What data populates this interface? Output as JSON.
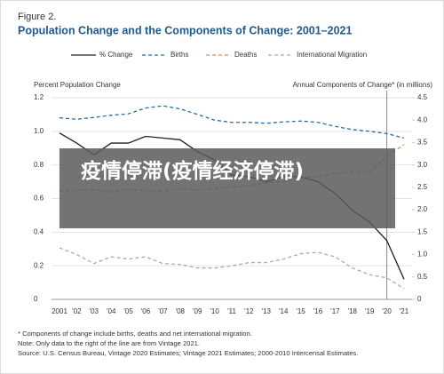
{
  "chart_data": {
    "type": "line",
    "figure_label": "Figure 2.",
    "title": "Population Change and the Components of Change: 2001–2021",
    "y_label": "Percent Population Change",
    "y2_label": "Annual Components of Change* (in millions)",
    "categories": [
      "2001",
      "'02",
      "'03",
      "'04",
      "'05",
      "'06",
      "'07",
      "'08",
      "'09",
      "'10",
      "'11",
      "'12",
      "'13",
      "'14",
      "'15",
      "'16",
      "'17",
      "'18",
      "'19",
      "'20",
      "'21"
    ],
    "series": [
      {
        "name": "% Change",
        "color": "#222222",
        "line_style": "solid",
        "values": [
          0.99,
          0.93,
          0.86,
          0.93,
          0.93,
          0.97,
          0.96,
          0.95,
          0.88,
          0.83,
          0.74,
          0.73,
          0.7,
          0.73,
          0.73,
          0.7,
          0.63,
          0.53,
          0.46,
          0.35,
          0.12
        ]
      },
      {
        "name": "Births",
        "color": "#2a6a9e",
        "line_style": "dashed",
        "axis": "y2",
        "values": [
          4.05,
          4.02,
          4.06,
          4.11,
          4.14,
          4.27,
          4.32,
          4.25,
          4.13,
          4.0,
          3.95,
          3.95,
          3.93,
          3.96,
          3.98,
          3.95,
          3.86,
          3.79,
          3.75,
          3.7,
          3.6
        ]
      },
      {
        "name": "Deaths",
        "color": "#d98b5a",
        "line_style": "dashed",
        "axis": "y2",
        "values": [
          2.42,
          2.44,
          2.45,
          2.4,
          2.45,
          2.43,
          2.42,
          2.47,
          2.44,
          2.47,
          2.51,
          2.54,
          2.6,
          2.63,
          2.71,
          2.74,
          2.81,
          2.84,
          2.85,
          3.2,
          3.45
        ]
      },
      {
        "name": "International Migration",
        "color": "#aaaaaa",
        "line_style": "dashed",
        "axis": "y2",
        "values": [
          1.15,
          1.0,
          0.8,
          0.95,
          0.9,
          0.95,
          0.8,
          0.78,
          0.7,
          0.7,
          0.75,
          0.82,
          0.82,
          0.9,
          1.02,
          1.05,
          0.95,
          0.7,
          0.55,
          0.48,
          0.24
        ]
      }
    ],
    "ylim": [
      0,
      1.2
    ],
    "yticks": [
      0,
      0.2,
      0.4,
      0.6,
      0.8,
      {
        "value": 1,
        "label": "1.0"
      },
      1.2
    ],
    "y2lim": [
      0,
      4.5
    ],
    "y2ticks": [
      0,
      0.5,
      {
        "value": 1,
        "label": "1.0"
      },
      1.5,
      {
        "value": 2,
        "label": "2.0"
      },
      2.5,
      {
        "value": 3,
        "label": "3.0"
      },
      3.5,
      {
        "value": 4,
        "label": "4.0"
      },
      4.5
    ],
    "grid": true,
    "notes": [
      "* Components of change include births, deaths and net international migration.",
      "Note: Only data to the right of the line are from Vintage 2021.",
      "Source: U.S. Census Bureau, Vintage 2020 Estimates; Vintage 2021 Estimates; 2000-2010 Intercensal Estimates."
    ]
  },
  "overlay": {
    "text": "疫情停滞(疫情经济停滞)"
  }
}
